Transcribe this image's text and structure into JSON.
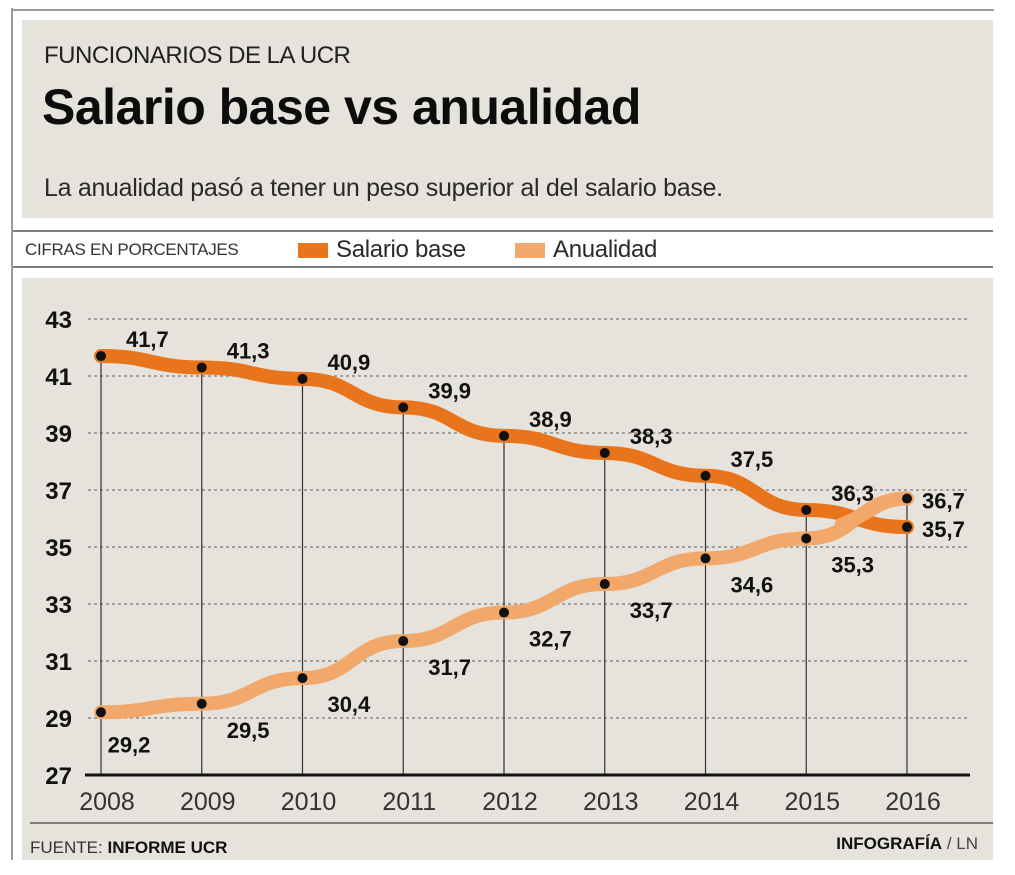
{
  "header": {
    "kicker": "FUNCIONARIOS DE LA UCR",
    "title": "Salario base vs anualidad",
    "subtitle": "La anualidad pasó a tener un peso superior al del salario base."
  },
  "legend": {
    "units_label": "CIFRAS EN PORCENTAJES",
    "items": [
      {
        "label": "Salario base",
        "color": "#e8741c"
      },
      {
        "label": "Anualidad",
        "color": "#f2a86a"
      }
    ]
  },
  "footer": {
    "source_prefix": "FUENTE:",
    "source": "INFORME UCR",
    "credit": "INFOGRAFÍA",
    "credit_suffix": "/ LN"
  },
  "chart_data": {
    "type": "line",
    "title": "Salario base vs anualidad",
    "subtitle": "La anualidad pasó a tener un peso superior al del salario base.",
    "xlabel": "",
    "ylabel": "CIFRAS EN PORCENTAJES",
    "x": [
      "2008",
      "2009",
      "2010",
      "2011",
      "2012",
      "2013",
      "2014",
      "2015",
      "2016"
    ],
    "y_ticks": [
      "43",
      "41",
      "39",
      "37",
      "35",
      "33",
      "31",
      "29",
      "27"
    ],
    "ylim": [
      27,
      43
    ],
    "grid": "horizontal-dotted",
    "legend": "top-left",
    "series": [
      {
        "name": "Salario base",
        "color": "#e8741c",
        "values": [
          41.7,
          41.3,
          40.9,
          39.9,
          38.9,
          38.3,
          37.5,
          36.3,
          35.7
        ],
        "labels": [
          "41,7",
          "41,3",
          "40,9",
          "39,9",
          "38,9",
          "38,3",
          "37,5",
          "36,3",
          "35,7"
        ]
      },
      {
        "name": "Anualidad",
        "color": "#f2a86a",
        "values": [
          29.2,
          29.5,
          30.4,
          31.7,
          32.7,
          33.7,
          34.6,
          35.3,
          36.7
        ],
        "labels": [
          "29,2",
          "29,5",
          "30,4",
          "31,7",
          "32,7",
          "33,7",
          "34,6",
          "35,3",
          "36,7"
        ]
      }
    ]
  }
}
